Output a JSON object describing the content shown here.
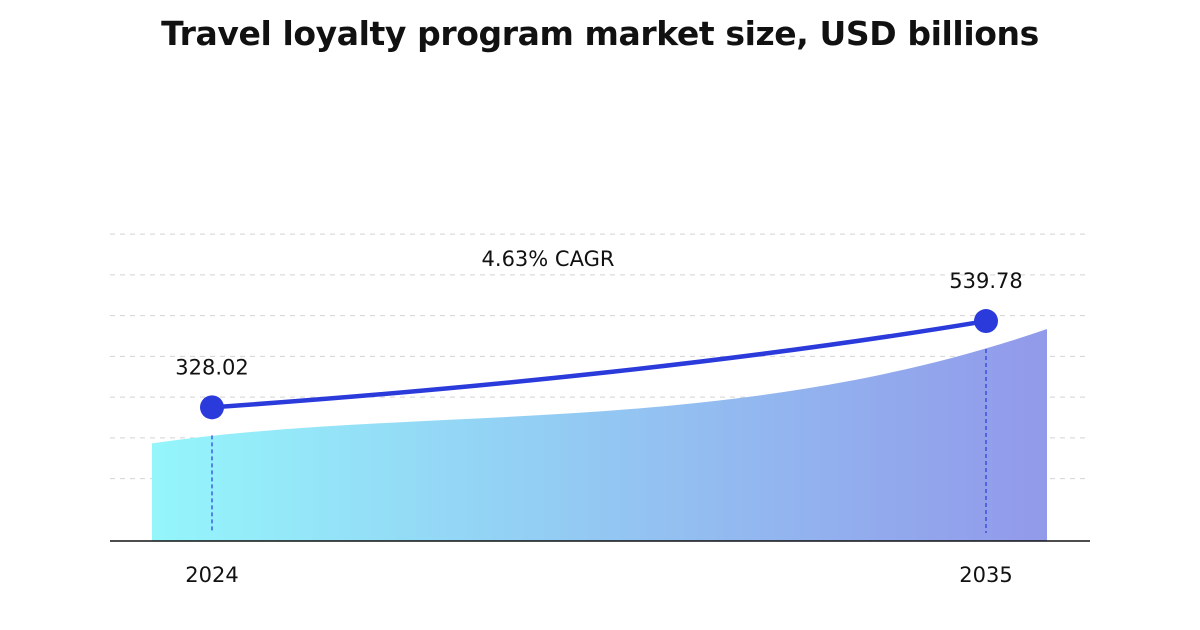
{
  "chart_data": {
    "type": "area",
    "title": "Travel loyalty program market size, USD billions",
    "categories": [
      "2024",
      "2035"
    ],
    "series": [
      {
        "values": [
          328.02,
          539.78
        ]
      }
    ],
    "data_labels": [
      "328.02",
      "539.78"
    ],
    "annotation": "4.63% CAGR",
    "xlabel": "",
    "ylabel": "",
    "ylim": [
      0,
      700
    ],
    "grid": true,
    "colors": {
      "line": "#2b3bdb",
      "marker": "#2b3bdb",
      "area_start": "#94f6fb",
      "area_end": "#9299ea",
      "grid": "#d4d4d4",
      "axis": "#111111",
      "dropline": "#2b3bdb"
    }
  }
}
